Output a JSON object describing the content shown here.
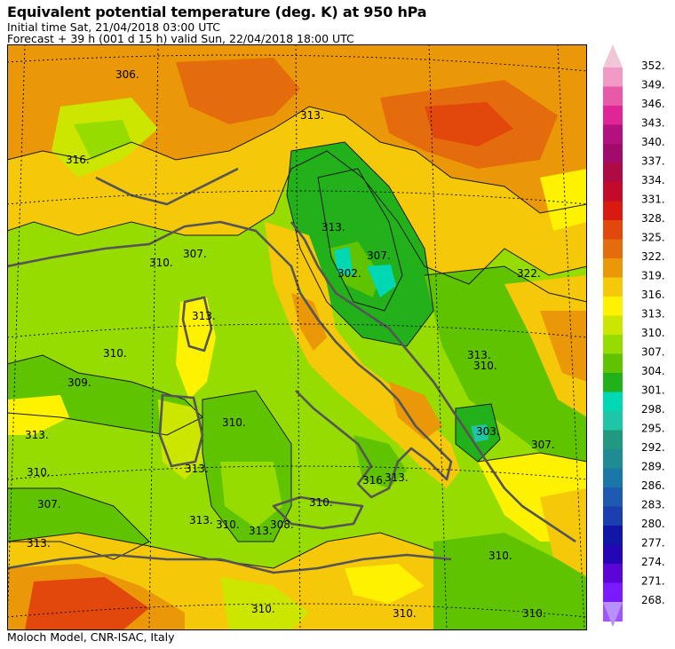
{
  "header": {
    "title": "Equivalent potential temperature (deg. K) at 950 hPa",
    "initial_time": "Initial time  Sat, 21/04/2018  03:00 UTC",
    "forecast": "Forecast  +  39 h  (001 d 15 h)  valid Sun, 22/04/2018 18:00 UTC"
  },
  "footer": {
    "credit": "Moloch Model, CNR-ISAC, Italy"
  },
  "colorbar": {
    "levels": [
      "352.",
      "349.",
      "346.",
      "343.",
      "340.",
      "337.",
      "334.",
      "331.",
      "328.",
      "325.",
      "322.",
      "319.",
      "316.",
      "313.",
      "310.",
      "307.",
      "304.",
      "301.",
      "298.",
      "295.",
      "292.",
      "289.",
      "286.",
      "283.",
      "280.",
      "277.",
      "274.",
      "271.",
      "268."
    ],
    "colors": [
      "#f29ac6",
      "#e85aa8",
      "#e02596",
      "#b5107f",
      "#a30b6a",
      "#b00a46",
      "#c40a2a",
      "#d81a10",
      "#e2470c",
      "#e56c0c",
      "#ea9708",
      "#f5c80a",
      "#fff200",
      "#cde600",
      "#96dc00",
      "#5fc300",
      "#22b11a",
      "#00d7b3",
      "#1fc6a6",
      "#219880",
      "#1f8b93",
      "#1b77a8",
      "#1e5ab2",
      "#193fb0",
      "#1216a8",
      "#2406b6",
      "#5a06d6",
      "#7a1aff",
      "#9f55ff"
    ],
    "top_arrow_color": "#f1c6d6",
    "bottom_arrow_color": "#b891ff"
  },
  "map": {
    "contour_labels": [
      "306.",
      "316.",
      "313.",
      "313.",
      "307.",
      "302.",
      "307.",
      "322.",
      "313.",
      "310.",
      "310.",
      "310.",
      "309.",
      "313.",
      "310.",
      "310.",
      "313.",
      "313.",
      "313.",
      "313.",
      "307.",
      "303.",
      "313.",
      "310.",
      "313.",
      "308.",
      "310.",
      "316.",
      "307.",
      "310.",
      "310.",
      "310.",
      "310."
    ]
  }
}
